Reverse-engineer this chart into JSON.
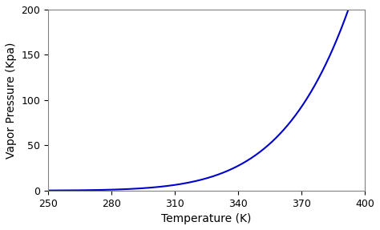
{
  "T_start": 250,
  "T_end": 400,
  "xlim": [
    250,
    400
  ],
  "ylim": [
    0,
    200
  ],
  "xticks": [
    250,
    280,
    310,
    340,
    370,
    400
  ],
  "yticks": [
    0,
    50,
    100,
    150,
    200
  ],
  "xlabel": "Temperature (K)",
  "ylabel": "Vapor Pressure (Kpa)",
  "line_color": "#0000CD",
  "line_width": 1.5,
  "background_color": "#ffffff",
  "tick_fontsize": 9,
  "label_fontsize": 10,
  "grid": false
}
